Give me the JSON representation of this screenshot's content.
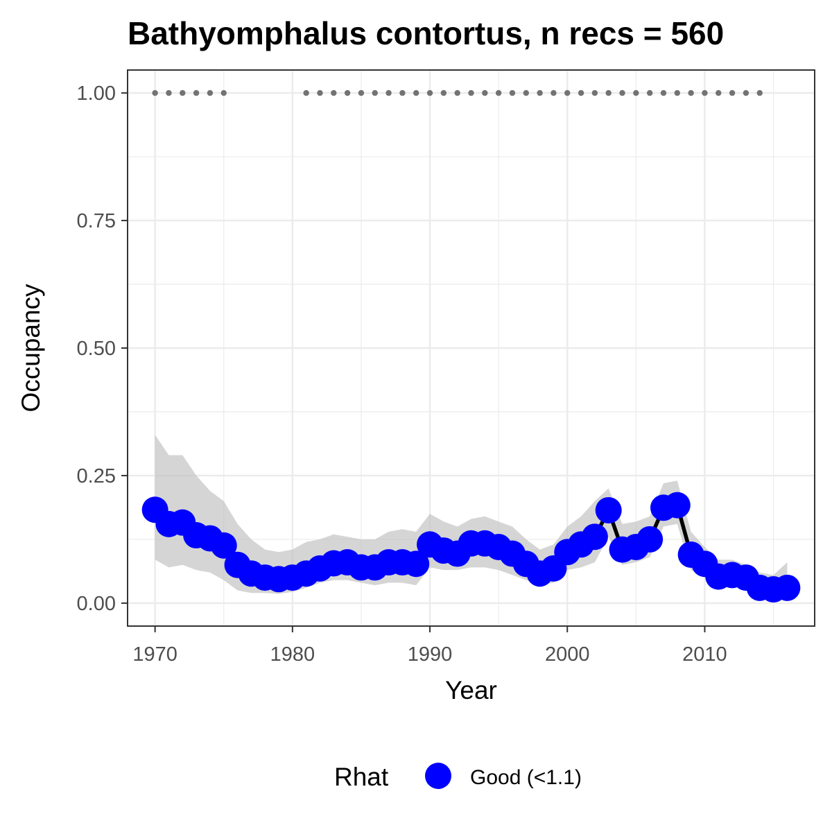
{
  "chart_data": {
    "type": "line",
    "title": "Bathyomphalus contortus, n recs = 560",
    "xlabel": "Year",
    "ylabel": "Occupancy",
    "xlim": [
      1968,
      2018
    ],
    "ylim": [
      -0.045,
      1.045
    ],
    "x_ticks": [
      1970,
      1980,
      1990,
      2000,
      2010
    ],
    "x_tick_labels": [
      "1970",
      "1980",
      "1990",
      "2000",
      "2010"
    ],
    "y_ticks": [
      0.0,
      0.25,
      0.5,
      0.75,
      1.0
    ],
    "y_tick_labels": [
      "0.00",
      "0.25",
      "0.50",
      "0.75",
      "1.00"
    ],
    "grid": true,
    "legend": {
      "title": "Rhat",
      "placement": "bottom",
      "entries": [
        {
          "label": "Good (<1.1)",
          "color": "#0000ff"
        }
      ]
    },
    "colors": {
      "points": "#0000ff",
      "line": "#000000",
      "ribbon": "#bebebe",
      "record_dots": "#737373",
      "grid": "#ebebeb",
      "panel_border": "#333333"
    },
    "x": [
      1970,
      1971,
      1972,
      1973,
      1974,
      1975,
      1976,
      1977,
      1978,
      1979,
      1980,
      1981,
      1982,
      1983,
      1984,
      1985,
      1986,
      1987,
      1988,
      1989,
      1990,
      1991,
      1992,
      1993,
      1994,
      1995,
      1996,
      1997,
      1998,
      1999,
      2000,
      2001,
      2002,
      2003,
      2004,
      2005,
      2006,
      2007,
      2008,
      2009,
      2010,
      2011,
      2012,
      2013,
      2014,
      2015,
      2016
    ],
    "series": [
      {
        "values": [
          0.183,
          0.155,
          0.158,
          0.133,
          0.127,
          0.113,
          0.075,
          0.058,
          0.05,
          0.047,
          0.05,
          0.058,
          0.068,
          0.078,
          0.08,
          0.07,
          0.07,
          0.08,
          0.08,
          0.077,
          0.115,
          0.103,
          0.097,
          0.117,
          0.117,
          0.11,
          0.097,
          0.077,
          0.058,
          0.068,
          0.1,
          0.115,
          0.13,
          0.182,
          0.105,
          0.11,
          0.125,
          0.187,
          0.192,
          0.095,
          0.077,
          0.052,
          0.055,
          0.05,
          0.03,
          0.027,
          0.03
        ]
      }
    ],
    "ribbon": {
      "lower": [
        0.085,
        0.07,
        0.075,
        0.065,
        0.06,
        0.045,
        0.025,
        0.02,
        0.02,
        0.018,
        0.022,
        0.03,
        0.04,
        0.045,
        0.045,
        0.04,
        0.035,
        0.04,
        0.04,
        0.035,
        0.07,
        0.065,
        0.065,
        0.07,
        0.07,
        0.065,
        0.055,
        0.045,
        0.035,
        0.04,
        0.065,
        0.07,
        0.08,
        0.13,
        0.075,
        0.08,
        0.09,
        0.15,
        0.155,
        0.065,
        0.05,
        0.035,
        0.035,
        0.03,
        0.018,
        0.015,
        0.018
      ],
      "upper": [
        0.33,
        0.29,
        0.29,
        0.25,
        0.22,
        0.2,
        0.155,
        0.125,
        0.105,
        0.1,
        0.105,
        0.12,
        0.125,
        0.135,
        0.13,
        0.125,
        0.125,
        0.14,
        0.145,
        0.14,
        0.175,
        0.16,
        0.15,
        0.165,
        0.17,
        0.16,
        0.15,
        0.125,
        0.105,
        0.115,
        0.15,
        0.17,
        0.2,
        0.225,
        0.155,
        0.16,
        0.17,
        0.235,
        0.24,
        0.14,
        0.11,
        0.085,
        0.085,
        0.075,
        0.06,
        0.055,
        0.08
      ]
    },
    "records": {
      "y": 1.0,
      "years": [
        1970,
        1971,
        1972,
        1973,
        1974,
        1975,
        1981,
        1982,
        1983,
        1984,
        1985,
        1986,
        1987,
        1988,
        1989,
        1990,
        1991,
        1992,
        1993,
        1994,
        1995,
        1996,
        1997,
        1998,
        1999,
        2000,
        2001,
        2002,
        2003,
        2004,
        2005,
        2006,
        2007,
        2008,
        2009,
        2010,
        2011,
        2012,
        2013,
        2014
      ]
    }
  }
}
